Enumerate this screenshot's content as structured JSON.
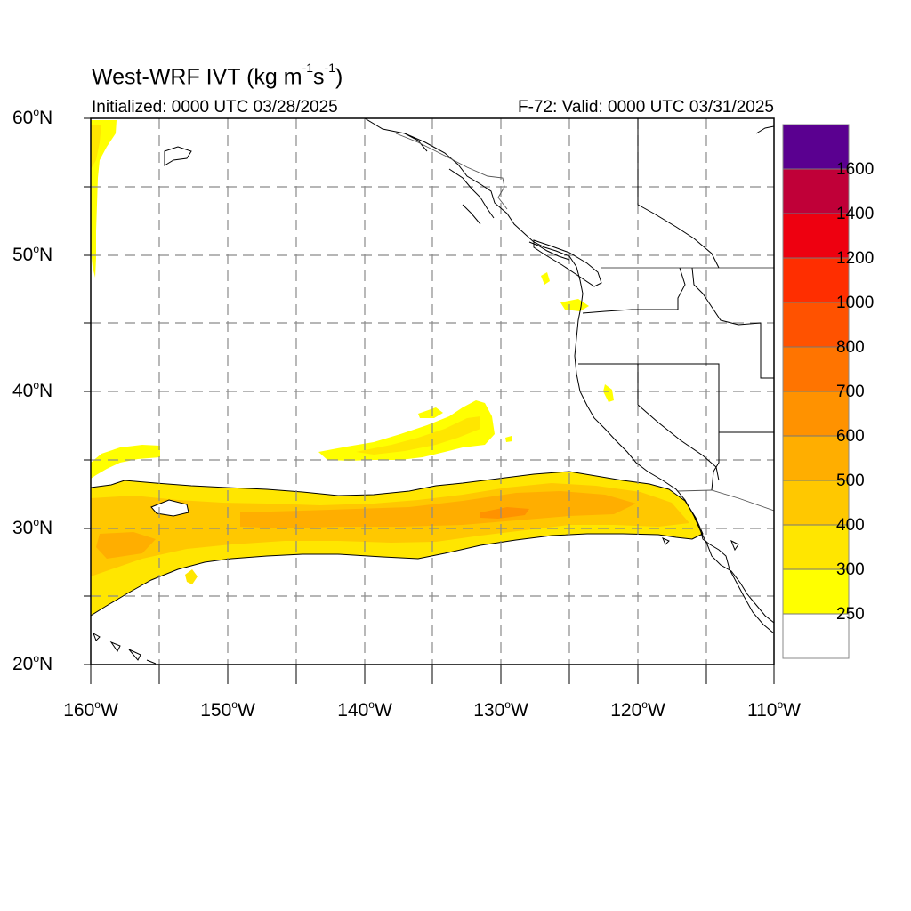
{
  "header": {
    "title_main": "West-WRF IVT (kg m",
    "title_exp1": "-1",
    "title_mid": "s",
    "title_exp2": "-1",
    "title_end": ")",
    "initialized": "Initialized: 0000 UTC 03/28/2025",
    "valid": "F-72: Valid: 0000 UTC 03/31/2025"
  },
  "map": {
    "projection": "cylindrical equidistant",
    "lon_range": [
      -160,
      -110
    ],
    "lat_range": [
      20,
      60
    ],
    "lat_labels": [
      {
        "value": "60",
        "hemi": "N"
      },
      {
        "value": "50",
        "hemi": "N"
      },
      {
        "value": "40",
        "hemi": "N"
      },
      {
        "value": "30",
        "hemi": "N"
      },
      {
        "value": "20",
        "hemi": "N"
      }
    ],
    "lon_labels": [
      {
        "value": "160",
        "hemi": "W"
      },
      {
        "value": "150",
        "hemi": "W"
      },
      {
        "value": "140",
        "hemi": "W"
      },
      {
        "value": "130",
        "hemi": "W"
      },
      {
        "value": "120",
        "hemi": "W"
      },
      {
        "value": "110",
        "hemi": "W"
      }
    ],
    "gridlines": "dashed every 5 degrees",
    "features": [
      "coastlines",
      "state boundaries",
      "country boundaries"
    ]
  },
  "colorbar": {
    "levels": [
      "250",
      "300",
      "400",
      "500",
      "600",
      "700",
      "800",
      "1000",
      "1200",
      "1400",
      "1600"
    ],
    "colors": [
      "#ffffff",
      "#ffff00",
      "#ffe600",
      "#ffc800",
      "#ffae00",
      "#ff9200",
      "#ff7400",
      "#ff5200",
      "#ff2e00",
      "#ee0010",
      "#c00038",
      "#8c0064",
      "#5a0090"
    ]
  }
}
